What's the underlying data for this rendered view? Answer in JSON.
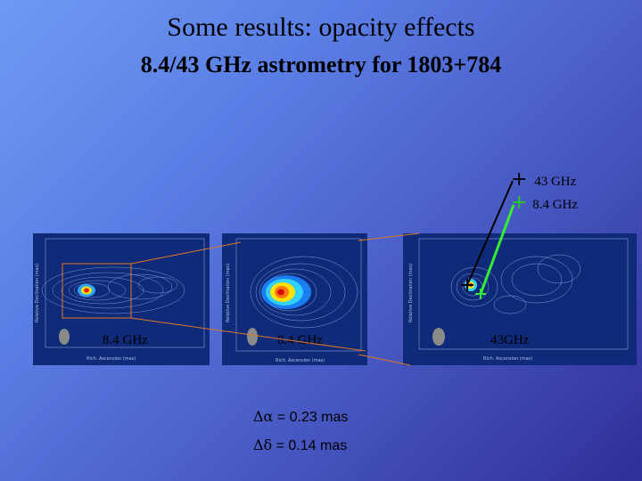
{
  "slide": {
    "title": "Some results: opacity effects",
    "subtitle": "8.4/43 GHz astrometry for 1803+784"
  },
  "legend": {
    "items": [
      {
        "symbol": "+",
        "label": "43 GHz",
        "color": "#000000"
      },
      {
        "symbol": "+",
        "label": "8.4 GHz",
        "color": "#22cc22"
      }
    ]
  },
  "panels": [
    {
      "label": "8.4 GHz"
    },
    {
      "label": "8.4 GHz"
    },
    {
      "label": "43GHz"
    }
  ],
  "results": {
    "alpha_symbol": "Δα",
    "alpha_text": " = 0.23 mas",
    "delta_symbol": "Δδ",
    "delta_text": " = 0.14 mas"
  },
  "colors": {
    "background_top": "#6f9bf2",
    "background_bottom": "#2f2f96",
    "zoom_box": "#e07828",
    "offset_line": "#33ee33"
  }
}
